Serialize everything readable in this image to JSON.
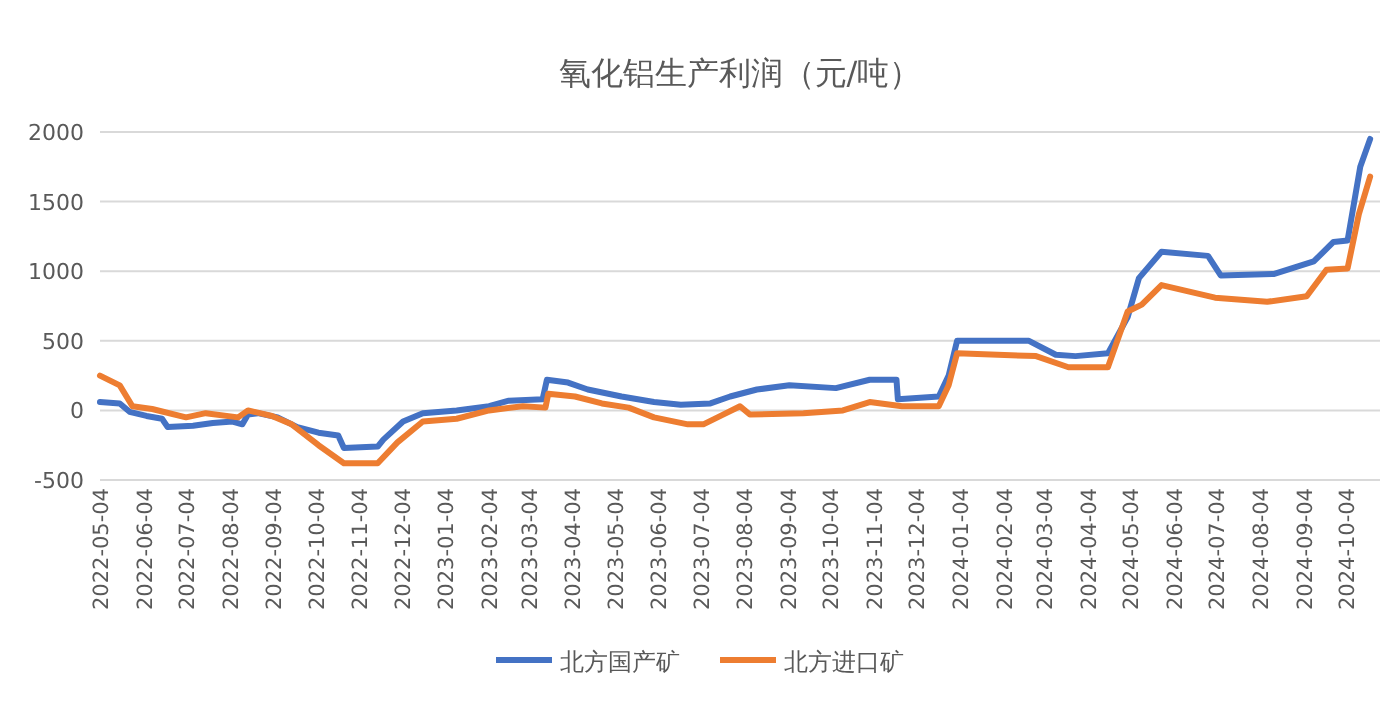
{
  "chart_data": {
    "type": "line",
    "title": "氧化铝生产利润（元/吨）",
    "xlim": [
      "2022-05-04",
      "2024-10-28"
    ],
    "ylim": [
      -500,
      2000
    ],
    "yticks": [
      -500,
      0,
      500,
      1000,
      1500,
      2000
    ],
    "xticks": [
      "2022-05-04",
      "2022-06-04",
      "2022-07-04",
      "2022-08-04",
      "2022-09-04",
      "2022-10-04",
      "2022-11-04",
      "2022-12-04",
      "2023-01-04",
      "2023-02-04",
      "2023-03-04",
      "2023-04-04",
      "2023-05-04",
      "2023-06-04",
      "2023-07-04",
      "2023-08-04",
      "2023-09-04",
      "2023-10-04",
      "2023-11-04",
      "2023-12-04",
      "2024-01-04",
      "2024-02-04",
      "2024-03-04",
      "2024-04-04",
      "2024-05-04",
      "2024-06-04",
      "2024-07-04",
      "2024-08-04",
      "2024-09-04",
      "2024-10-04"
    ],
    "grid": "y",
    "legend": "bottom",
    "line_style": "solid",
    "marker": "none",
    "series": [
      {
        "name": "北方国产矿",
        "color": "#4472c4",
        "x": [
          "2022-05-04",
          "2022-05-18",
          "2022-05-25",
          "2022-06-06",
          "2022-06-17",
          "2022-06-21",
          "2022-07-09",
          "2022-07-23",
          "2022-08-06",
          "2022-08-13",
          "2022-08-17",
          "2022-08-24",
          "2022-09-07",
          "2022-09-21",
          "2022-10-06",
          "2022-10-20",
          "2022-10-24",
          "2022-11-17",
          "2022-11-21",
          "2022-12-05",
          "2022-12-19",
          "2023-01-12",
          "2023-02-04",
          "2023-02-18",
          "2023-03-14",
          "2023-03-17",
          "2023-04-01",
          "2023-04-15",
          "2023-05-09",
          "2023-06-01",
          "2023-06-20",
          "2023-07-11",
          "2023-07-25",
          "2023-08-13",
          "2023-09-05",
          "2023-10-08",
          "2023-11-01",
          "2023-11-20",
          "2023-11-21",
          "2023-12-20",
          "2023-12-27",
          "2024-01-02",
          "2024-02-22",
          "2024-03-12",
          "2024-03-26",
          "2024-04-18",
          "2024-05-02",
          "2024-05-10",
          "2024-05-26",
          "2024-06-28",
          "2024-07-07",
          "2024-08-14",
          "2024-09-11",
          "2024-09-25",
          "2024-10-05",
          "2024-10-14",
          "2024-10-21"
        ],
        "values": [
          60,
          50,
          -10,
          -40,
          -60,
          -120,
          -110,
          -90,
          -80,
          -100,
          -30,
          -20,
          -50,
          -120,
          -160,
          -180,
          -270,
          -260,
          -210,
          -80,
          -20,
          0,
          30,
          70,
          80,
          220,
          200,
          150,
          100,
          60,
          40,
          50,
          100,
          150,
          180,
          160,
          220,
          220,
          80,
          100,
          250,
          500,
          500,
          400,
          390,
          410,
          670,
          950,
          1140,
          1110,
          970,
          980,
          1070,
          1210,
          1220,
          1750,
          1950
        ]
      },
      {
        "name": "北方进口矿",
        "color": "#ed7d31",
        "x": [
          "2022-05-04",
          "2022-05-18",
          "2022-05-27",
          "2022-06-10",
          "2022-07-04",
          "2022-07-18",
          "2022-08-10",
          "2022-08-17",
          "2022-09-03",
          "2022-09-17",
          "2022-10-06",
          "2022-10-24",
          "2022-11-17",
          "2022-12-01",
          "2022-12-19",
          "2023-01-12",
          "2023-02-04",
          "2023-02-28",
          "2023-03-16",
          "2023-03-18",
          "2023-04-06",
          "2023-04-25",
          "2023-05-14",
          "2023-06-01",
          "2023-06-25",
          "2023-07-06",
          "2023-07-20",
          "2023-08-01",
          "2023-08-08",
          "2023-09-15",
          "2023-10-13",
          "2023-11-01",
          "2023-11-24",
          "2023-12-20",
          "2023-12-27",
          "2024-01-02",
          "2024-02-27",
          "2024-03-21",
          "2024-04-18",
          "2024-05-02",
          "2024-05-12",
          "2024-05-26",
          "2024-07-03",
          "2024-08-09",
          "2024-09-06",
          "2024-09-20",
          "2024-10-05",
          "2024-10-13",
          "2024-10-21"
        ],
        "values": [
          250,
          180,
          30,
          10,
          -50,
          -20,
          -50,
          0,
          -40,
          -100,
          -250,
          -380,
          -380,
          -230,
          -80,
          -60,
          0,
          30,
          20,
          120,
          100,
          50,
          20,
          -50,
          -100,
          -100,
          -30,
          30,
          -30,
          -20,
          0,
          60,
          30,
          30,
          180,
          410,
          390,
          310,
          310,
          710,
          760,
          900,
          810,
          780,
          820,
          1010,
          1020,
          1410,
          1680
        ]
      }
    ]
  }
}
